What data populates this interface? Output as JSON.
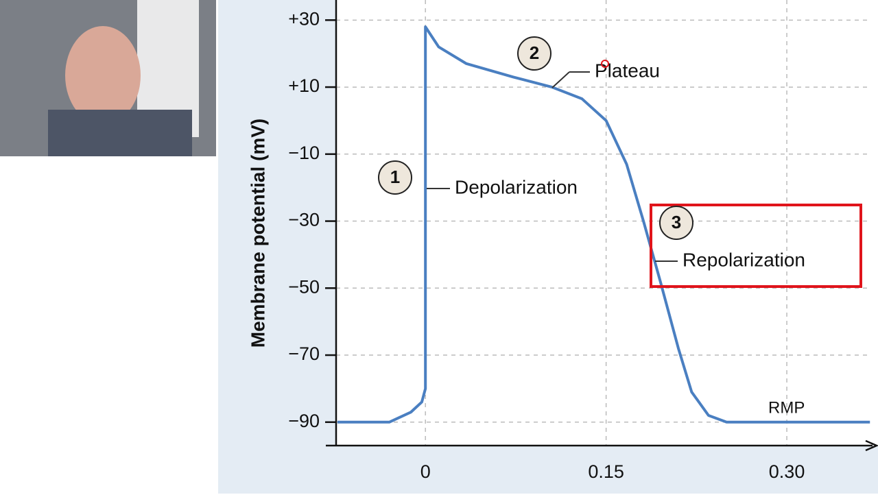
{
  "chart_data": {
    "type": "line",
    "ylabel": "Membrane potential (mV)",
    "x": [
      -0.073,
      -0.03,
      -0.012,
      -0.003,
      0,
      0,
      0.011,
      0.034,
      0.073,
      0.105,
      0.13,
      0.15,
      0.167,
      0.181,
      0.195,
      0.21,
      0.221,
      0.235,
      0.25,
      0.369
    ],
    "series": [
      {
        "color": "#4a7fc1",
        "values": [
          -90,
          -90,
          -87,
          -84,
          -80,
          28,
          22,
          17,
          13,
          10,
          6.5,
          0,
          -13,
          -30,
          -48,
          -68,
          -81,
          -88,
          -90,
          -90
        ]
      }
    ],
    "xlim": [
      -0.073,
      0.37
    ],
    "ylim": [
      -97,
      36
    ],
    "xticks": [
      0,
      0.15,
      {
        "value": 0.3,
        "label": "0.30"
      }
    ],
    "yticks": [
      {
        "value": 30,
        "label": "+30"
      },
      {
        "value": 10,
        "label": "+10"
      },
      {
        "value": -10,
        "label": "−10"
      },
      {
        "value": -30,
        "label": "−30"
      },
      {
        "value": -50,
        "label": "−50"
      },
      {
        "value": -70,
        "label": "−70"
      },
      {
        "value": -90,
        "label": "−90"
      }
    ],
    "grid": true,
    "annotations": [
      "1",
      "Depolarization",
      "2",
      "Plateau",
      "3",
      "Repolarization",
      "RMP"
    ]
  }
}
